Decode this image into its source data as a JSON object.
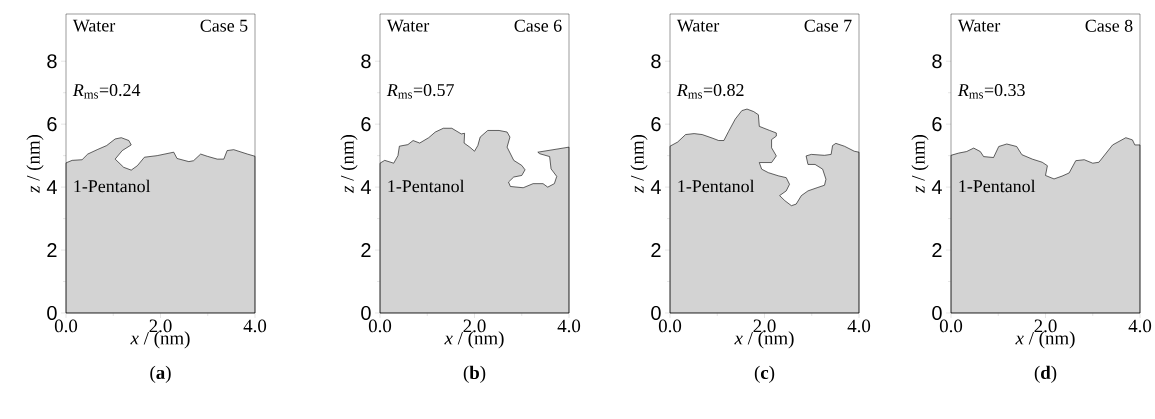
{
  "chart_data": [
    {
      "type": "area",
      "title": "(**a**)",
      "xlabel": "*x* / (nm)",
      "ylabel": "*z* / (nm)",
      "xlim": [
        0,
        4
      ],
      "ylim": [
        0,
        9.5
      ],
      "xticks": [
        {
          "value": 0,
          "label": "0.0"
        },
        {
          "value": 2,
          "label": "2.0"
        },
        {
          "value": 4,
          "label": "4.0"
        }
      ],
      "yticks": [
        0,
        2,
        4,
        6,
        8
      ],
      "annotations": [
        "Water",
        "Case 5",
        "*R*$_{ms}$=0.24",
        "1-Pentanol"
      ],
      "series": [
        {
          "color": "#d3d3d3",
          "x": [
            0,
            0.13,
            0.34,
            0.46,
            0.66,
            0.86,
            1.04,
            1.17,
            1.33,
            1.38,
            1.19,
            1.04,
            1.22,
            1.38,
            1.51,
            1.66,
            1.93,
            2.28,
            2.35,
            2.6,
            2.7,
            2.85,
            2.99,
            3.2,
            3.34,
            3.41,
            3.55,
            3.84,
            4.0
          ],
          "values": [
            4.77,
            4.85,
            4.87,
            5.05,
            5.19,
            5.32,
            5.53,
            5.57,
            5.48,
            5.34,
            5.16,
            4.89,
            4.63,
            4.54,
            4.68,
            4.95,
            5.0,
            5.11,
            4.91,
            4.81,
            4.84,
            5.05,
            4.98,
            4.89,
            4.89,
            5.16,
            5.19,
            5.05,
            4.98
          ]
        }
      ]
    },
    {
      "type": "area",
      "title": "(**b**)",
      "xlabel": "*x* / (nm)",
      "ylabel": "*z* / (nm)",
      "xlim": [
        0,
        4
      ],
      "ylim": [
        0,
        9.5
      ],
      "xticks": [
        {
          "value": 0,
          "label": "0.0"
        },
        {
          "value": 2,
          "label": "2.0"
        },
        {
          "value": 4,
          "label": "4.0"
        }
      ],
      "yticks": [
        0,
        2,
        4,
        6,
        8
      ],
      "annotations": [
        "Water",
        "Case 6",
        "*R*$_{ms}$=0.57",
        "1-Pentanol"
      ],
      "series": [
        {
          "color": "#d3d3d3",
          "x": [
            0,
            0.1,
            0.29,
            0.38,
            0.41,
            0.59,
            0.7,
            0.84,
            1.03,
            1.17,
            1.34,
            1.52,
            1.72,
            1.79,
            1.78,
            1.9,
            2.0,
            2.07,
            2.12,
            2.28,
            2.52,
            2.69,
            2.75,
            2.69,
            2.83,
            3.0,
            3.07,
            3.0,
            2.83,
            2.72,
            2.76,
            3.03,
            3.24,
            3.45,
            3.55,
            3.69,
            3.74,
            3.62,
            3.59,
            3.38,
            3.34,
            4.0
          ],
          "values": [
            4.76,
            4.85,
            4.76,
            5.0,
            5.3,
            5.35,
            5.48,
            5.4,
            5.57,
            5.75,
            5.87,
            5.87,
            5.69,
            5.71,
            5.4,
            5.27,
            5.14,
            5.32,
            5.59,
            5.8,
            5.8,
            5.75,
            5.59,
            5.27,
            4.85,
            4.69,
            4.55,
            4.37,
            4.32,
            4.16,
            4.02,
            3.98,
            4.11,
            4.11,
            4.0,
            4.11,
            4.34,
            4.58,
            4.97,
            5.06,
            5.11,
            5.27
          ]
        }
      ]
    },
    {
      "type": "area",
      "title": "(**c**)",
      "xlabel": "*x* / (nm)",
      "ylabel": "*z* / (nm)",
      "xlim": [
        0,
        4
      ],
      "ylim": [
        0,
        9.5
      ],
      "xticks": [
        {
          "value": 0,
          "label": "0.0"
        },
        {
          "value": 2,
          "label": "2.0"
        },
        {
          "value": 4,
          "label": "4.0"
        }
      ],
      "yticks": [
        0,
        2,
        4,
        6,
        8
      ],
      "annotations": [
        "Water",
        "Case 7",
        "*R*$_{ms}$=0.82",
        "1-Pentanol"
      ],
      "series": [
        {
          "color": "#d3d3d3",
          "x": [
            0,
            0.16,
            0.33,
            0.51,
            0.68,
            0.89,
            1.03,
            1.14,
            1.24,
            1.38,
            1.52,
            1.63,
            1.77,
            1.87,
            1.89,
            2.11,
            2.25,
            2.25,
            2.15,
            2.15,
            2.25,
            2.15,
            1.89,
            1.94,
            2.08,
            2.29,
            2.46,
            2.53,
            2.46,
            2.32,
            2.43,
            2.57,
            2.67,
            2.78,
            2.92,
            3.13,
            3.27,
            3.3,
            3.23,
            3.07,
            2.92,
            2.88,
            2.99,
            3.27,
            3.41,
            3.44,
            3.51,
            3.69,
            3.9,
            4.0
          ],
          "values": [
            5.3,
            5.43,
            5.67,
            5.7,
            5.67,
            5.56,
            5.48,
            5.48,
            5.77,
            6.16,
            6.43,
            6.48,
            6.4,
            6.3,
            5.93,
            5.8,
            5.72,
            5.62,
            5.51,
            5.25,
            4.99,
            4.78,
            4.78,
            4.57,
            4.46,
            4.36,
            4.3,
            4.09,
            3.88,
            3.73,
            3.57,
            3.41,
            3.46,
            3.73,
            3.88,
            3.99,
            4.06,
            4.25,
            4.57,
            4.72,
            4.72,
            4.99,
            5.04,
            5.01,
            5.04,
            5.32,
            5.39,
            5.3,
            5.14,
            5.11
          ]
        }
      ]
    },
    {
      "type": "area",
      "title": "(**d**)",
      "xlabel": "*x* / (nm)",
      "ylabel": "*z* / (nm)",
      "xlim": [
        0,
        4
      ],
      "ylim": [
        0,
        9.5
      ],
      "xticks": [
        {
          "value": 0,
          "label": "0.0"
        },
        {
          "value": 2,
          "label": "2.0"
        },
        {
          "value": 4,
          "label": "4.0"
        }
      ],
      "yticks": [
        0,
        2,
        4,
        6,
        8
      ],
      "annotations": [
        "Water",
        "Case 8",
        "*R*$_{ms}$=0.33",
        "1-Pentanol"
      ],
      "series": [
        {
          "color": "#d3d3d3",
          "x": [
            0,
            0.16,
            0.33,
            0.48,
            0.62,
            0.69,
            0.9,
            1.01,
            1.18,
            1.39,
            1.5,
            1.72,
            1.93,
            2.04,
            2.0,
            2.18,
            2.35,
            2.5,
            2.64,
            2.82,
            3.0,
            3.13,
            3.42,
            3.7,
            3.84,
            3.89,
            4.0
          ],
          "values": [
            5.01,
            5.08,
            5.13,
            5.24,
            5.13,
            4.97,
            4.94,
            5.29,
            5.37,
            5.29,
            5.03,
            4.89,
            4.79,
            4.68,
            4.37,
            4.26,
            4.35,
            4.45,
            4.84,
            4.87,
            4.76,
            4.79,
            5.34,
            5.57,
            5.5,
            5.34,
            5.34
          ]
        }
      ]
    }
  ]
}
